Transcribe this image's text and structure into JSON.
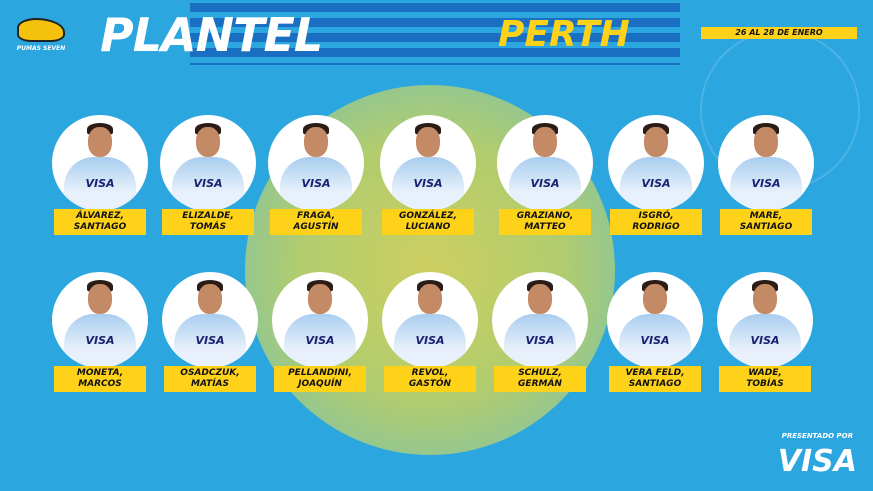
{
  "header": {
    "title": "PLANTEL",
    "city": "PERTH",
    "dates": "26 AL 28 DE ENERO",
    "logo_text": "PUMAS SEVEN"
  },
  "players": [
    {
      "last": "ÁLVAREZ,",
      "first": "SANTIAGO"
    },
    {
      "last": "ELIZALDE,",
      "first": "TOMÁS"
    },
    {
      "last": "FRAGA,",
      "first": "AGUSTÍN"
    },
    {
      "last": "GONZÁLEZ,",
      "first": "LUCIANO"
    },
    {
      "last": "GRAZIANO,",
      "first": "MATTEO"
    },
    {
      "last": "ISGRÓ,",
      "first": "RODRIGO"
    },
    {
      "last": "MARE,",
      "first": "SANTIAGO"
    },
    {
      "last": "MONETA,",
      "first": "MARCOS"
    },
    {
      "last": "OSADCZUK,",
      "first": "MATÍAS"
    },
    {
      "last": "PELLANDINI,",
      "first": "JOAQUÍN"
    },
    {
      "last": "REVOL,",
      "first": "GASTÓN"
    },
    {
      "last": "SCHULZ,",
      "first": "GERMÁN"
    },
    {
      "last": "VERA FELD,",
      "first": "SANTIAGO"
    },
    {
      "last": "WADE,",
      "first": "TOBÍAS"
    }
  ],
  "jersey_sponsor": "VISA",
  "footer": {
    "presented_by": "PRESENTADO POR",
    "sponsor": "VISA"
  },
  "colors": {
    "background": "#2ba6df",
    "accent": "#ffd21a",
    "stripe": "#1a6fc2"
  }
}
